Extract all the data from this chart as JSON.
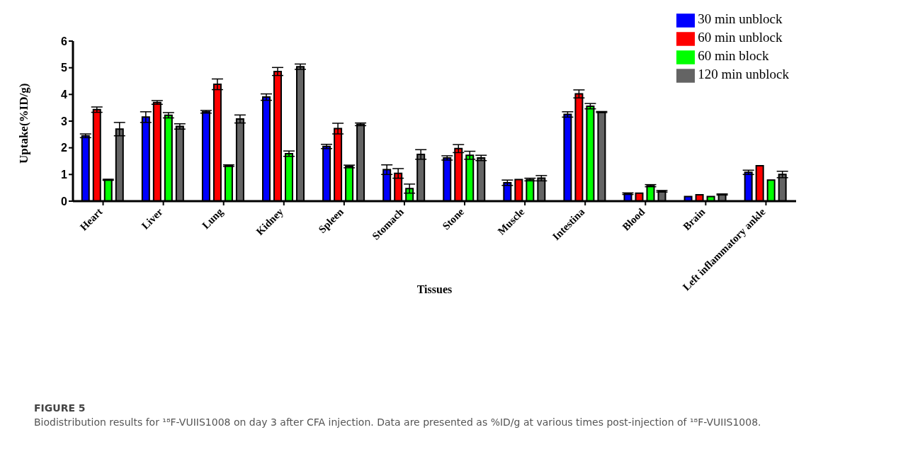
{
  "chart_data": {
    "type": "bar",
    "xlabel": "Tissues",
    "ylabel": "Uptake(%ID/g)",
    "categories": [
      "Heart",
      "Liver",
      "Lung",
      "Kidney",
      "Spleen",
      "Stomach",
      "Stone",
      "Muscle",
      "Intestina",
      "Blood",
      "Brain",
      "Left inflammatory ankle"
    ],
    "series": [
      {
        "name": "30 min unblock",
        "color": "#0000ff",
        "values": [
          2.45,
          3.15,
          3.35,
          3.9,
          2.05,
          1.18,
          1.62,
          0.69,
          3.25,
          0.28,
          0.17,
          1.08
        ],
        "errors": [
          0.07,
          0.2,
          0.05,
          0.12,
          0.08,
          0.18,
          0.08,
          0.1,
          0.1,
          0.03,
          null,
          0.08
        ]
      },
      {
        "name": "60 min unblock",
        "color": "#ff0000",
        "values": [
          3.43,
          3.7,
          4.38,
          4.86,
          2.72,
          1.04,
          1.97,
          0.81,
          4.02,
          0.3,
          0.24,
          1.33
        ],
        "errors": [
          0.1,
          0.07,
          0.2,
          0.15,
          0.2,
          0.18,
          0.15,
          null,
          0.15,
          null,
          null,
          null
        ]
      },
      {
        "name": "60 min block",
        "color": "#00ff00",
        "values": [
          0.8,
          3.22,
          1.33,
          1.78,
          1.3,
          0.47,
          1.72,
          0.81,
          3.56,
          0.58,
          0.17,
          0.79
        ],
        "errors": [
          0.02,
          0.1,
          0.03,
          0.1,
          0.05,
          0.17,
          0.15,
          0.05,
          0.1,
          0.04,
          null,
          null
        ]
      },
      {
        "name": "120 min unblock",
        "color": "#646464",
        "values": [
          2.7,
          2.8,
          3.08,
          5.04,
          2.88,
          1.75,
          1.62,
          0.86,
          3.34,
          0.37,
          0.25,
          1.0
        ],
        "errors": [
          0.25,
          0.1,
          0.15,
          0.1,
          0.05,
          0.18,
          0.1,
          0.1,
          0.02,
          0.03,
          0.02,
          0.12
        ]
      }
    ],
    "ylim": [
      0,
      6
    ],
    "yticks": [
      0,
      1,
      2,
      3,
      4,
      5,
      6
    ],
    "legend": "top right",
    "annotations": [
      "FIGURE 5",
      "Biodistribution results for ¹⁸F-VUIIS1008 on day 3 after CFA injection. Data are presented as %ID/g at various times post-injection of ¹⁸F-VUIIS1008."
    ]
  }
}
